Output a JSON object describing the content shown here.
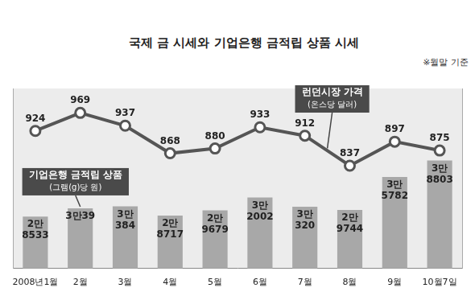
{
  "chart_data": {
    "type": "bar",
    "title": "국제 금 시세와 기업은행 금적립 상품 시세",
    "annotations": [
      "※월말 기준"
    ],
    "categories": [
      "2008년1월",
      "2월",
      "3월",
      "4월",
      "5월",
      "6월",
      "7월",
      "8월",
      "9월",
      "10월7일"
    ],
    "series": [
      {
        "name": "기업은행 금적립 상품",
        "unit": "(그램(g)당 원)",
        "type": "bar",
        "color": "#a8a8a8",
        "values": [
          28533,
          30039,
          30384,
          28717,
          29679,
          32002,
          30320,
          29744,
          35782,
          38803
        ],
        "value_labels": [
          "2만\n8533",
          "3만39",
          "3만\n384",
          "2만\n8717",
          "2만\n9679",
          "3만\n2002",
          "3만\n320",
          "2만\n9744",
          "3만\n5782",
          "3만\n8803"
        ]
      },
      {
        "name": "런던시장 가격",
        "unit": "(온스당 달러)",
        "type": "line",
        "color": "#555555",
        "marker": "circle",
        "line_style": "solid",
        "axis": "y2",
        "values": [
          924,
          969,
          937,
          868,
          880,
          933,
          912,
          837,
          897,
          875
        ]
      }
    ],
    "ylim": [
      19000,
      52000
    ],
    "y2lim": [
      580,
      1030
    ],
    "data_labels": true,
    "tick_labels": "x",
    "grid": false
  }
}
